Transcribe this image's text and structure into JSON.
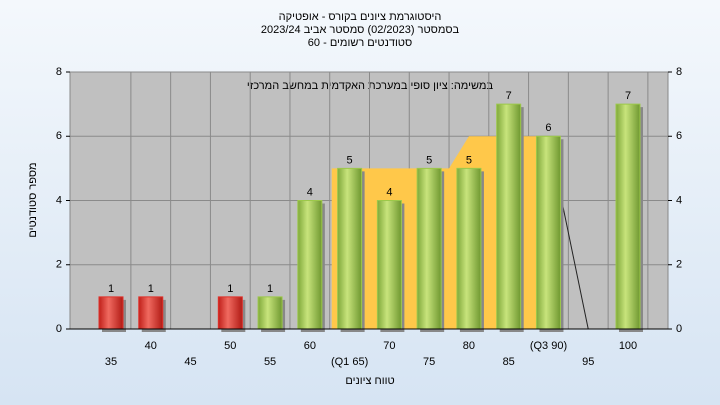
{
  "chart_data": {
    "type": "bar",
    "title": "היסטוגרמת ציונים בקורס - אופטיקה",
    "subtitle": "בסמסטר  (02/2023)  סמסטר אביב 2023/24",
    "subtitle2": "60 - סטודנטים רשומים",
    "annotation": "במשימה: ציון סופי במערכת האקדמית במחשב המרכזי",
    "x_label": "טווח ציונים",
    "y_label": "מספר סטודנטים",
    "categories": [
      "35",
      "40",
      "45",
      "50",
      "55",
      "60",
      "(Q1 65)",
      "70",
      "75",
      "80",
      "85",
      "(Q3 90)",
      "95",
      "100"
    ],
    "values": [
      1,
      1,
      null,
      1,
      1,
      4,
      5,
      4,
      5,
      5,
      7,
      6,
      null,
      7
    ],
    "colors": [
      "#e0302a",
      "#e0302a",
      null,
      "#e0302a",
      "#9cc84a",
      "#9cc84a",
      "#9cc84a",
      "#9cc84a",
      "#9cc84a",
      "#9cc84a",
      "#9cc84a",
      "#9cc84a",
      null,
      "#9cc84a"
    ],
    "ylim": [
      0,
      8
    ],
    "yticks": [
      0,
      2,
      4,
      6,
      8
    ],
    "y2lim": [
      0,
      8
    ],
    "y2ticks": [
      0,
      2,
      4,
      6,
      8
    ],
    "grid": true
  }
}
